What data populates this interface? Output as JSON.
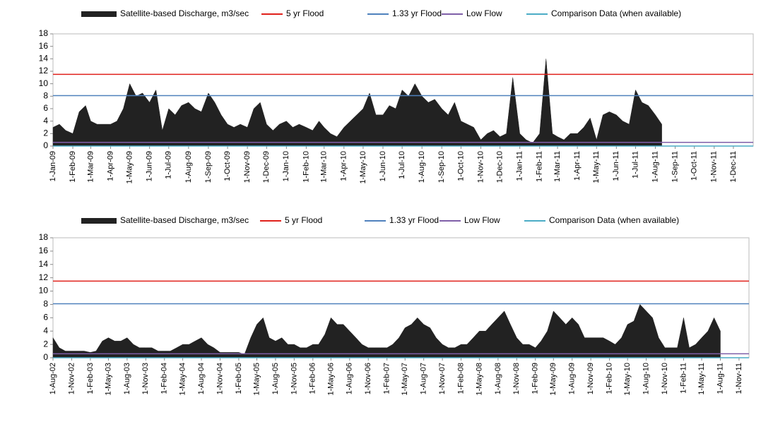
{
  "chart_data": [
    {
      "type": "area",
      "xlim": [
        "1-Jan-09",
        "1-Jan-12"
      ],
      "xticks": [
        "1-Jan-09",
        "1-Feb-09",
        "1-Mar-09",
        "1-Apr-09",
        "1-May-09",
        "1-Jun-09",
        "1-Jul-09",
        "1-Aug-09",
        "1-Sep-09",
        "1-Oct-09",
        "1-Nov-09",
        "1-Dec-09",
        "1-Jan-10",
        "1-Feb-10",
        "1-Mar-10",
        "1-Apr-10",
        "1-May-10",
        "1-Jun-10",
        "1-Jul-10",
        "1-Aug-10",
        "1-Sep-10",
        "1-Oct-10",
        "1-Nov-10",
        "1-Dec-10",
        "1-Jan-11",
        "1-Feb-11",
        "1-Mar-11",
        "1-Apr-11",
        "1-May-11",
        "1-Jun-11",
        "1-Jul-11",
        "1-Aug-11",
        "1-Sep-11",
        "1-Oct-11",
        "1-Nov-11",
        "1-Dec-11"
      ],
      "ylim": [
        0,
        18
      ],
      "yticks": [
        0,
        2,
        4,
        6,
        8,
        10,
        12,
        14,
        16,
        18
      ],
      "series": [
        {
          "name": "Satellite-based Discharge, m3/sec",
          "color": "#222222",
          "x": [
            "1-Jan-09",
            "11-Jan-09",
            "21-Jan-09",
            "1-Feb-09",
            "11-Feb-09",
            "21-Feb-09",
            "1-Mar-09",
            "11-Mar-09",
            "21-Mar-09",
            "1-Apr-09",
            "11-Apr-09",
            "21-Apr-09",
            "1-May-09",
            "11-May-09",
            "21-May-09",
            "1-Jun-09",
            "11-Jun-09",
            "21-Jun-09",
            "1-Jul-09",
            "11-Jul-09",
            "21-Jul-09",
            "1-Aug-09",
            "11-Aug-09",
            "21-Aug-09",
            "1-Sep-09",
            "11-Sep-09",
            "21-Sep-09",
            "1-Oct-09",
            "11-Oct-09",
            "21-Oct-09",
            "1-Nov-09",
            "11-Nov-09",
            "21-Nov-09",
            "1-Dec-09",
            "11-Dec-09",
            "21-Dec-09",
            "1-Jan-10",
            "11-Jan-10",
            "21-Jan-10",
            "1-Feb-10",
            "11-Feb-10",
            "21-Feb-10",
            "1-Mar-10",
            "11-Mar-10",
            "21-Mar-10",
            "1-Apr-10",
            "11-Apr-10",
            "21-Apr-10",
            "1-May-10",
            "11-May-10",
            "21-May-10",
            "1-Jun-10",
            "11-Jun-10",
            "21-Jun-10",
            "1-Jul-10",
            "11-Jul-10",
            "21-Jul-10",
            "1-Aug-10",
            "11-Aug-10",
            "21-Aug-10",
            "1-Sep-10",
            "11-Sep-10",
            "21-Sep-10",
            "1-Oct-10",
            "11-Oct-10",
            "21-Oct-10",
            "1-Nov-10",
            "11-Nov-10",
            "21-Nov-10",
            "1-Dec-10",
            "11-Dec-10",
            "21-Dec-10",
            "1-Jan-11",
            "11-Jan-11",
            "21-Jan-11",
            "1-Feb-11",
            "11-Feb-11",
            "21-Feb-11",
            "1-Mar-11",
            "11-Mar-11",
            "21-Mar-11",
            "1-Apr-11",
            "11-Apr-11",
            "21-Apr-11",
            "1-May-11",
            "11-May-11",
            "21-May-11",
            "1-Jun-11",
            "11-Jun-11",
            "21-Jun-11",
            "1-Jul-11",
            "11-Jul-11",
            "21-Jul-11",
            "1-Aug-11",
            "11-Aug-11"
          ],
          "values": [
            3,
            3.5,
            2.5,
            2,
            5.5,
            6.5,
            4,
            3.5,
            3.5,
            3.5,
            4,
            6,
            10,
            8,
            8.5,
            7,
            9,
            2.5,
            6,
            5,
            6.5,
            7,
            6,
            5.5,
            8.5,
            7,
            5,
            3.5,
            3,
            3.5,
            3,
            6,
            7,
            3.5,
            2.5,
            3.5,
            4,
            3,
            3.5,
            3,
            2.5,
            4,
            3,
            2,
            1.5,
            3,
            4,
            5,
            6,
            8.5,
            5,
            5,
            6.5,
            6,
            9,
            8,
            10,
            8,
            7,
            7.5,
            6,
            5,
            7,
            4,
            3.5,
            3,
            1,
            2,
            2.5,
            1.5,
            2,
            11,
            2,
            1,
            0.5,
            2,
            14,
            2,
            1.5,
            1,
            2,
            2,
            3,
            4.5,
            1,
            5,
            5.5,
            5,
            4,
            3.5,
            9,
            7,
            6.5,
            5,
            3.5
          ]
        },
        {
          "name": "5 yr Flood",
          "color": "#e0201b",
          "value": 11.5
        },
        {
          "name": "1.33 yr Flood",
          "color": "#4f81bd",
          "value": 8.1
        },
        {
          "name": "Low Flow",
          "color": "#7f5fa8",
          "value": 0.6
        },
        {
          "name": "Comparison Data (when available)",
          "color": "#4bacc6",
          "value": 0
        }
      ]
    },
    {
      "type": "area",
      "xlim": [
        "1-Aug-02",
        "20-Dec-11"
      ],
      "xticks": [
        "1-Aug-02",
        "1-Nov-02",
        "1-Feb-03",
        "1-May-03",
        "1-Aug-03",
        "1-Nov-03",
        "1-Feb-04",
        "1-May-04",
        "1-Aug-04",
        "1-Nov-04",
        "1-Feb-05",
        "1-May-05",
        "1-Aug-05",
        "1-Nov-05",
        "1-Feb-06",
        "1-May-06",
        "1-Aug-06",
        "1-Nov-06",
        "1-Feb-07",
        "1-May-07",
        "1-Aug-07",
        "1-Nov-07",
        "1-Feb-08",
        "1-May-08",
        "1-Aug-08",
        "1-Nov-08",
        "1-Feb-09",
        "1-May-09",
        "1-Aug-09",
        "1-Nov-09",
        "1-Feb-10",
        "1-May-10",
        "1-Aug-10",
        "1-Nov-10",
        "1-Feb-11",
        "1-May-11",
        "1-Aug-11",
        "1-Nov-11"
      ],
      "ylim": [
        0,
        18
      ],
      "yticks": [
        0,
        2,
        4,
        6,
        8,
        10,
        12,
        14,
        16,
        18
      ],
      "series": [
        {
          "name": "Satellite-based Discharge, m3/sec",
          "color": "#222222",
          "x": [
            "1-Aug-02",
            "1-Sep-02",
            "1-Oct-02",
            "1-Nov-02",
            "1-Dec-02",
            "1-Jan-03",
            "1-Feb-03",
            "1-Mar-03",
            "1-Apr-03",
            "1-May-03",
            "1-Jun-03",
            "1-Jul-03",
            "1-Aug-03",
            "1-Sep-03",
            "1-Oct-03",
            "1-Nov-03",
            "1-Dec-03",
            "1-Jan-04",
            "1-Feb-04",
            "1-Mar-04",
            "1-Apr-04",
            "1-May-04",
            "1-Jun-04",
            "1-Jul-04",
            "1-Aug-04",
            "1-Sep-04",
            "1-Oct-04",
            "1-Nov-04",
            "1-Dec-04",
            "1-Jan-05",
            "1-Feb-05",
            "1-Mar-05",
            "1-Apr-05",
            "1-May-05",
            "1-Jun-05",
            "1-Jul-05",
            "1-Aug-05",
            "1-Sep-05",
            "1-Oct-05",
            "1-Nov-05",
            "1-Dec-05",
            "1-Jan-06",
            "1-Feb-06",
            "1-Mar-06",
            "1-Apr-06",
            "1-May-06",
            "1-Jun-06",
            "1-Jul-06",
            "1-Aug-06",
            "1-Sep-06",
            "1-Oct-06",
            "1-Nov-06",
            "1-Dec-06",
            "1-Jan-07",
            "1-Feb-07",
            "1-Mar-07",
            "1-Apr-07",
            "1-May-07",
            "1-Jun-07",
            "1-Jul-07",
            "1-Aug-07",
            "1-Sep-07",
            "1-Oct-07",
            "1-Nov-07",
            "1-Dec-07",
            "1-Jan-08",
            "1-Feb-08",
            "1-Mar-08",
            "1-Apr-08",
            "1-May-08",
            "1-Jun-08",
            "1-Jul-08",
            "1-Aug-08",
            "1-Sep-08",
            "1-Oct-08",
            "1-Nov-08",
            "1-Dec-08",
            "1-Jan-09",
            "1-Feb-09",
            "1-Mar-09",
            "1-Apr-09",
            "1-May-09",
            "1-Jun-09",
            "1-Jul-09",
            "1-Aug-09",
            "1-Sep-09",
            "1-Oct-09",
            "1-Nov-09",
            "1-Dec-09",
            "1-Jan-10",
            "1-Feb-10",
            "1-Mar-10",
            "1-Apr-10",
            "1-May-10",
            "1-Jun-10",
            "1-Jul-10",
            "1-Aug-10",
            "1-Sep-10",
            "1-Oct-10",
            "1-Nov-10",
            "1-Dec-10",
            "1-Jan-11",
            "1-Feb-11",
            "1-Mar-11",
            "1-Apr-11",
            "1-May-11",
            "1-Jun-11",
            "1-Jul-11",
            "1-Aug-11"
          ],
          "values": [
            3,
            1.5,
            1,
            1,
            1,
            1,
            0.8,
            1,
            2.5,
            3,
            2.5,
            2.5,
            3,
            2,
            1.5,
            1.5,
            1.5,
            1,
            1,
            1,
            1.5,
            2,
            2,
            2.5,
            3,
            2,
            1.5,
            0.8,
            0.8,
            0.8,
            0.8,
            0.5,
            3,
            5,
            6,
            3,
            2.5,
            3,
            2,
            2,
            1.5,
            1.5,
            2,
            2,
            3.5,
            6,
            5,
            5,
            4,
            3,
            2,
            1.5,
            1.5,
            1.5,
            1.5,
            2,
            3,
            4.5,
            5,
            6,
            5,
            4.5,
            3,
            2,
            1.5,
            1.5,
            2,
            2,
            3,
            4,
            4,
            5,
            6,
            7,
            5,
            3,
            2,
            2,
            1.5,
            2.5,
            4,
            7,
            6,
            5,
            6,
            5,
            3,
            3,
            3,
            3,
            2.5,
            2,
            3,
            5,
            5.5,
            8,
            7,
            6,
            3,
            1.5,
            1.5,
            1.5,
            6,
            1.5,
            2,
            3,
            4,
            6,
            4
          ]
        },
        {
          "name": "5 yr Flood",
          "color": "#e0201b",
          "value": 11.5
        },
        {
          "name": "1.33 yr Flood",
          "color": "#4f81bd",
          "value": 8.1
        },
        {
          "name": "Low Flow",
          "color": "#7f5fa8",
          "value": 0.6
        },
        {
          "name": "Comparison Data (when available)",
          "color": "#4bacc6",
          "value": 0
        }
      ]
    }
  ]
}
